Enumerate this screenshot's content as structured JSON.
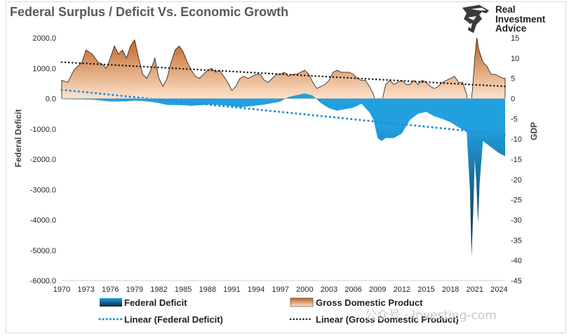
{
  "colors": {
    "title": "#595959",
    "gdp_fill_top": "#c0621f",
    "gdp_fill_bottom": "#fde3cc",
    "deficit_fill_top": "#21a0e0",
    "deficit_fill_bottom": "#0b2638",
    "trend_deficit": "#1f8dd6",
    "trend_gdp": "#1a1a1a"
  },
  "logo": {
    "icon": "eagle-head-icon",
    "lines": [
      "Real",
      "Investment",
      "Advice"
    ]
  },
  "watermark": "公众号 · Investing-com",
  "chart_data": {
    "type": "area",
    "title": "Federal Surplus / Deficit Vs. Economic Growth",
    "ylabel_left": "Federal Deficit",
    "ylabel_right": "GDP",
    "ylim_left": [
      -6000,
      2000
    ],
    "ylim_right": [
      -45,
      15
    ],
    "yticks_left": [
      "2000.0",
      "1000.0",
      "0.0",
      "-1000.0",
      "-2000.0",
      "-3000.0",
      "-4000.0",
      "-5000.0",
      "-6000.0"
    ],
    "yticks_right": [
      "15",
      "10",
      "5",
      "0",
      "-5",
      "-10",
      "-15",
      "-20",
      "-25",
      "-30",
      "-35",
      "-40",
      "-45"
    ],
    "xlim": [
      1970,
      2024.75
    ],
    "xticks": [
      "1970",
      "1973",
      "1976",
      "1979",
      "1982",
      "1985",
      "1988",
      "1991",
      "1994",
      "1997",
      "2000",
      "2003",
      "2006",
      "2009",
      "2012",
      "2015",
      "2018",
      "2021",
      "2024"
    ],
    "grid": false,
    "legend_position": "bottom",
    "series": [
      {
        "name": "Gross Domestic Product",
        "axis": "right",
        "kind": "area",
        "points": [
          [
            1970,
            4.5
          ],
          [
            1970.75,
            4
          ],
          [
            1971.5,
            7
          ],
          [
            1972.5,
            9
          ],
          [
            1973,
            12
          ],
          [
            1973.75,
            11
          ],
          [
            1974.5,
            9
          ],
          [
            1975,
            8.5
          ],
          [
            1975.5,
            7.5
          ],
          [
            1976,
            10
          ],
          [
            1976.5,
            13
          ],
          [
            1977,
            11
          ],
          [
            1977.5,
            12
          ],
          [
            1978,
            10
          ],
          [
            1978.5,
            13
          ],
          [
            1979,
            14.5
          ],
          [
            1979.5,
            10
          ],
          [
            1980,
            6
          ],
          [
            1980.5,
            5
          ],
          [
            1981,
            7
          ],
          [
            1981.5,
            10
          ],
          [
            1982,
            5
          ],
          [
            1982.5,
            3
          ],
          [
            1983,
            5
          ],
          [
            1983.5,
            9
          ],
          [
            1984,
            12
          ],
          [
            1984.5,
            13
          ],
          [
            1985,
            11.5
          ],
          [
            1985.5,
            9
          ],
          [
            1986,
            7
          ],
          [
            1986.5,
            5.5
          ],
          [
            1987,
            5
          ],
          [
            1987.5,
            6
          ],
          [
            1988,
            7
          ],
          [
            1988.5,
            7.5
          ],
          [
            1989,
            6.5
          ],
          [
            1989.5,
            7
          ],
          [
            1990,
            5.5
          ],
          [
            1990.5,
            4
          ],
          [
            1991,
            2
          ],
          [
            1991.5,
            3
          ],
          [
            1992,
            5
          ],
          [
            1992.5,
            5.5
          ],
          [
            1993,
            5
          ],
          [
            1993.5,
            5.5
          ],
          [
            1994,
            6
          ],
          [
            1994.5,
            6
          ],
          [
            1995,
            4.5
          ],
          [
            1995.5,
            4
          ],
          [
            1996,
            5
          ],
          [
            1996.5,
            6
          ],
          [
            1997,
            6
          ],
          [
            1997.5,
            6.5
          ],
          [
            1998,
            5.5
          ],
          [
            1998.5,
            6
          ],
          [
            1999,
            6
          ],
          [
            1999.5,
            6.5
          ],
          [
            2000,
            7
          ],
          [
            2000.5,
            6
          ],
          [
            2001,
            4
          ],
          [
            2001.5,
            2.5
          ],
          [
            2002,
            3
          ],
          [
            2002.5,
            3.5
          ],
          [
            2003,
            4.5
          ],
          [
            2003.5,
            6.5
          ],
          [
            2004,
            7
          ],
          [
            2004.5,
            6.5
          ],
          [
            2005,
            6.5
          ],
          [
            2005.5,
            6.5
          ],
          [
            2006,
            6
          ],
          [
            2006.5,
            5
          ],
          [
            2007,
            4.5
          ],
          [
            2007.5,
            4.5
          ],
          [
            2008,
            3
          ],
          [
            2008.5,
            1
          ],
          [
            2009,
            -3
          ],
          [
            2009.5,
            -1
          ],
          [
            2010,
            3.5
          ],
          [
            2010.5,
            4.5
          ],
          [
            2011,
            3.5
          ],
          [
            2011.5,
            4
          ],
          [
            2012,
            4.5
          ],
          [
            2012.5,
            3.5
          ],
          [
            2013,
            3.5
          ],
          [
            2013.5,
            4.5
          ],
          [
            2014,
            3.5
          ],
          [
            2014.5,
            4.5
          ],
          [
            2015,
            4
          ],
          [
            2015.5,
            3
          ],
          [
            2016,
            2.5
          ],
          [
            2016.5,
            3
          ],
          [
            2017,
            4
          ],
          [
            2017.5,
            4.5
          ],
          [
            2018,
            5
          ],
          [
            2018.5,
            5.5
          ],
          [
            2019,
            4
          ],
          [
            2019.5,
            4
          ],
          [
            2020,
            1
          ],
          [
            2020.3,
            -6
          ],
          [
            2020.75,
            3
          ],
          [
            2021,
            10
          ],
          [
            2021.25,
            15
          ],
          [
            2021.5,
            12
          ],
          [
            2022,
            9
          ],
          [
            2022.5,
            8
          ],
          [
            2023,
            6
          ],
          [
            2023.5,
            6
          ],
          [
            2024,
            5.5
          ],
          [
            2024.5,
            5
          ],
          [
            2024.75,
            5
          ]
        ]
      },
      {
        "name": "Federal Deficit",
        "axis": "left",
        "kind": "area",
        "points": [
          [
            1970,
            -20
          ],
          [
            1972,
            -25
          ],
          [
            1974,
            -40
          ],
          [
            1975,
            -70
          ],
          [
            1976,
            -100
          ],
          [
            1978,
            -90
          ],
          [
            1979,
            -70
          ],
          [
            1980,
            -80
          ],
          [
            1981,
            -110
          ],
          [
            1982,
            -150
          ],
          [
            1983,
            -210
          ],
          [
            1985,
            -220
          ],
          [
            1986,
            -240
          ],
          [
            1988,
            -200
          ],
          [
            1990,
            -220
          ],
          [
            1992,
            -290
          ],
          [
            1993,
            -260
          ],
          [
            1995,
            -200
          ],
          [
            1997,
            -100
          ],
          [
            1998,
            50
          ],
          [
            2000,
            170
          ],
          [
            2001,
            100
          ],
          [
            2002,
            -150
          ],
          [
            2003,
            -320
          ],
          [
            2004,
            -400
          ],
          [
            2006,
            -300
          ],
          [
            2007,
            -170
          ],
          [
            2008,
            -450
          ],
          [
            2008.5,
            -700
          ],
          [
            2009,
            -1300
          ],
          [
            2009.5,
            -1400
          ],
          [
            2010,
            -1300
          ],
          [
            2011,
            -1300
          ],
          [
            2012,
            -1150
          ],
          [
            2013,
            -700
          ],
          [
            2014,
            -500
          ],
          [
            2015,
            -440
          ],
          [
            2016,
            -580
          ],
          [
            2017,
            -670
          ],
          [
            2018,
            -780
          ],
          [
            2019,
            -950
          ],
          [
            2020,
            -1100
          ],
          [
            2020.4,
            -3000
          ],
          [
            2020.6,
            -5200
          ],
          [
            2020.8,
            -3800
          ],
          [
            2021,
            -2000
          ],
          [
            2021.2,
            -2800
          ],
          [
            2021.4,
            -4100
          ],
          [
            2021.6,
            -2800
          ],
          [
            2022,
            -1400
          ],
          [
            2023,
            -1600
          ],
          [
            2024,
            -1800
          ],
          [
            2024.75,
            -1900
          ]
        ]
      },
      {
        "name": "Linear (Federal Deficit)",
        "axis": "left",
        "kind": "trendline",
        "points": [
          [
            1970,
            290
          ],
          [
            2024.75,
            -1190
          ]
        ]
      },
      {
        "name": "Linear (Gross Domestic Product)",
        "axis": "right",
        "kind": "trendline",
        "points": [
          [
            1970,
            9
          ],
          [
            2024.75,
            3
          ]
        ]
      }
    ]
  }
}
